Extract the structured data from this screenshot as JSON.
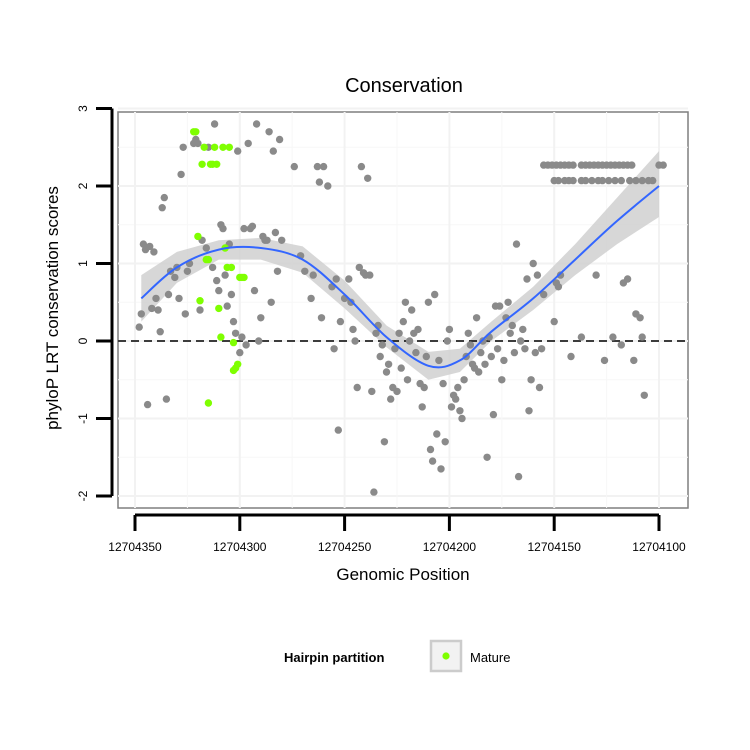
{
  "chart_data": {
    "type": "scatter",
    "title": "Conservation",
    "xlabel": "Genomic Position",
    "ylabel": "phyloP LRT conservation scores",
    "x_reversed": true,
    "xlim": [
      12704100,
      12704350
    ],
    "ylim": [
      -2,
      3
    ],
    "x_ticks": [
      12704350,
      12704300,
      12704250,
      12704200,
      12704150,
      12704100
    ],
    "x_tick_labels": [
      "12704350",
      "12704300",
      "12704250",
      "12704200",
      "12704150",
      "12704100"
    ],
    "y_ticks": [
      -2,
      -1,
      0,
      1,
      2,
      3
    ],
    "y_tick_labels": [
      "-2",
      "-1",
      "0",
      "1",
      "2",
      "3"
    ],
    "reference_line": {
      "y": 0,
      "style": "dashed"
    },
    "legend": {
      "title": "Hairpin partition",
      "position": "bottom",
      "entries": [
        {
          "label": "Mature",
          "color": "#7fff00"
        }
      ]
    },
    "colors": {
      "other": "#8a8a8a",
      "mature": "#7fff00",
      "smooth": "#3366ff",
      "band": "#d0d0d0"
    },
    "series": [
      {
        "name": "Other",
        "points": [
          [
            12704348,
            0.18
          ],
          [
            12704347,
            0.35
          ],
          [
            12704346,
            1.25
          ],
          [
            12704345,
            1.18
          ],
          [
            12704344,
            -0.82
          ],
          [
            12704343,
            1.22
          ],
          [
            12704342,
            0.42
          ],
          [
            12704341,
            1.15
          ],
          [
            12704340,
            0.55
          ],
          [
            12704339,
            0.4
          ],
          [
            12704338,
            0.12
          ],
          [
            12704337,
            1.72
          ],
          [
            12704336,
            1.85
          ],
          [
            12704335,
            -0.75
          ],
          [
            12704334,
            0.6
          ],
          [
            12704333,
            0.9
          ],
          [
            12704331,
            0.82
          ],
          [
            12704330,
            0.95
          ],
          [
            12704329,
            0.55
          ],
          [
            12704328,
            2.15
          ],
          [
            12704327,
            2.5
          ],
          [
            12704326,
            0.35
          ],
          [
            12704325,
            0.9
          ],
          [
            12704324,
            1.0
          ],
          [
            12704322,
            2.55
          ],
          [
            12704321,
            2.6
          ],
          [
            12704320,
            2.55
          ],
          [
            12704319,
            0.4
          ],
          [
            12704318,
            1.3
          ],
          [
            12704316,
            1.2
          ],
          [
            12704315,
            2.5
          ],
          [
            12704313,
            0.95
          ],
          [
            12704312,
            2.8
          ],
          [
            12704311,
            0.78
          ],
          [
            12704310,
            0.65
          ],
          [
            12704309,
            1.5
          ],
          [
            12704308,
            1.45
          ],
          [
            12704307,
            0.85
          ],
          [
            12704306,
            0.45
          ],
          [
            12704305,
            1.25
          ],
          [
            12704304,
            0.6
          ],
          [
            12704303,
            0.25
          ],
          [
            12704302,
            0.1
          ],
          [
            12704301,
            2.45
          ],
          [
            12704300,
            -0.15
          ],
          [
            12704299,
            0.05
          ],
          [
            12704298,
            1.45
          ],
          [
            12704297,
            -0.05
          ],
          [
            12704296,
            2.55
          ],
          [
            12704295,
            1.45
          ],
          [
            12704294,
            1.48
          ],
          [
            12704293,
            0.65
          ],
          [
            12704292,
            2.8
          ],
          [
            12704291,
            0.0
          ],
          [
            12704290,
            0.3
          ],
          [
            12704289,
            1.35
          ],
          [
            12704288,
            1.3
          ],
          [
            12704287,
            1.3
          ],
          [
            12704286,
            2.7
          ],
          [
            12704285,
            0.5
          ],
          [
            12704284,
            2.45
          ],
          [
            12704283,
            1.4
          ],
          [
            12704282,
            0.9
          ],
          [
            12704281,
            2.6
          ],
          [
            12704280,
            1.3
          ],
          [
            12704274,
            2.25
          ],
          [
            12704271,
            1.1
          ],
          [
            12704269,
            0.9
          ],
          [
            12704266,
            0.55
          ],
          [
            12704265,
            0.85
          ],
          [
            12704263,
            2.25
          ],
          [
            12704262,
            2.05
          ],
          [
            12704261,
            0.3
          ],
          [
            12704260,
            2.25
          ],
          [
            12704258,
            2.0
          ],
          [
            12704256,
            0.7
          ],
          [
            12704255,
            -0.1
          ],
          [
            12704254,
            0.8
          ],
          [
            12704253,
            -1.15
          ],
          [
            12704252,
            0.25
          ],
          [
            12704250,
            0.55
          ],
          [
            12704248,
            0.8
          ],
          [
            12704247,
            0.5
          ],
          [
            12704246,
            0.15
          ],
          [
            12704245,
            0.0
          ],
          [
            12704244,
            -0.6
          ],
          [
            12704243,
            0.95
          ],
          [
            12704242,
            2.25
          ],
          [
            12704241,
            0.88
          ],
          [
            12704240,
            0.85
          ],
          [
            12704239,
            2.1
          ],
          [
            12704238,
            0.85
          ],
          [
            12704237,
            -0.65
          ],
          [
            12704236,
            -1.95
          ],
          [
            12704235,
            0.1
          ],
          [
            12704234,
            0.2
          ],
          [
            12704233,
            -0.2
          ],
          [
            12704232,
            -0.05
          ],
          [
            12704231,
            -1.3
          ],
          [
            12704230,
            -0.4
          ],
          [
            12704229,
            -0.3
          ],
          [
            12704228,
            -0.75
          ],
          [
            12704227,
            -0.6
          ],
          [
            12704226,
            -0.1
          ],
          [
            12704225,
            -0.65
          ],
          [
            12704224,
            0.1
          ],
          [
            12704223,
            -0.35
          ],
          [
            12704222,
            0.25
          ],
          [
            12704221,
            0.5
          ],
          [
            12704220,
            -0.5
          ],
          [
            12704219,
            0.0
          ],
          [
            12704218,
            0.4
          ],
          [
            12704217,
            0.1
          ],
          [
            12704216,
            -0.15
          ],
          [
            12704215,
            0.15
          ],
          [
            12704214,
            -0.55
          ],
          [
            12704213,
            -0.85
          ],
          [
            12704212,
            -0.6
          ],
          [
            12704211,
            -0.2
          ],
          [
            12704210,
            0.5
          ],
          [
            12704209,
            -1.4
          ],
          [
            12704208,
            -1.55
          ],
          [
            12704207,
            0.6
          ],
          [
            12704206,
            -1.2
          ],
          [
            12704205,
            -0.25
          ],
          [
            12704204,
            -1.65
          ],
          [
            12704203,
            -0.55
          ],
          [
            12704202,
            -1.3
          ],
          [
            12704201,
            0.0
          ],
          [
            12704200,
            0.15
          ],
          [
            12704199,
            -0.85
          ],
          [
            12704198,
            -0.7
          ],
          [
            12704197,
            -0.75
          ],
          [
            12704196,
            -0.6
          ],
          [
            12704195,
            -0.9
          ],
          [
            12704194,
            -1.0
          ],
          [
            12704193,
            -0.5
          ],
          [
            12704192,
            -0.2
          ],
          [
            12704191,
            0.1
          ],
          [
            12704190,
            -0.05
          ],
          [
            12704189,
            -0.3
          ],
          [
            12704188,
            -0.35
          ],
          [
            12704187,
            0.3
          ],
          [
            12704186,
            -0.4
          ],
          [
            12704185,
            -0.15
          ],
          [
            12704184,
            0.0
          ],
          [
            12704183,
            -0.3
          ],
          [
            12704182,
            -1.5
          ],
          [
            12704181,
            0.05
          ],
          [
            12704180,
            -0.2
          ],
          [
            12704179,
            -0.95
          ],
          [
            12704178,
            0.45
          ],
          [
            12704177,
            -0.1
          ],
          [
            12704176,
            0.45
          ],
          [
            12704175,
            -0.5
          ],
          [
            12704174,
            -0.25
          ],
          [
            12704173,
            0.3
          ],
          [
            12704172,
            0.5
          ],
          [
            12704171,
            0.1
          ],
          [
            12704170,
            0.2
          ],
          [
            12704169,
            -0.15
          ],
          [
            12704168,
            1.25
          ],
          [
            12704167,
            -1.75
          ],
          [
            12704166,
            0.0
          ],
          [
            12704165,
            0.15
          ],
          [
            12704164,
            -0.1
          ],
          [
            12704163,
            0.8
          ],
          [
            12704162,
            -0.9
          ],
          [
            12704161,
            -0.5
          ],
          [
            12704160,
            1.0
          ],
          [
            12704159,
            -0.15
          ],
          [
            12704158,
            0.85
          ],
          [
            12704157,
            -0.6
          ],
          [
            12704156,
            -0.1
          ],
          [
            12704155,
            0.6
          ],
          [
            12704150,
            0.25
          ],
          [
            12704149,
            0.75
          ],
          [
            12704148,
            0.7
          ],
          [
            12704147,
            0.85
          ],
          [
            12704142,
            -0.2
          ],
          [
            12704137,
            0.05
          ],
          [
            12704130,
            0.85
          ],
          [
            12704126,
            -0.25
          ],
          [
            12704122,
            0.05
          ],
          [
            12704118,
            -0.05
          ],
          [
            12704117,
            0.75
          ],
          [
            12704115,
            0.8
          ],
          [
            12704112,
            -0.25
          ],
          [
            12704111,
            0.35
          ],
          [
            12704109,
            0.3
          ],
          [
            12704108,
            0.05
          ],
          [
            12704107,
            -0.7
          ],
          [
            12704155,
            2.27
          ],
          [
            12704153,
            2.27
          ],
          [
            12704151,
            2.27
          ],
          [
            12704149,
            2.27
          ],
          [
            12704147,
            2.27
          ],
          [
            12704145,
            2.27
          ],
          [
            12704143,
            2.27
          ],
          [
            12704141,
            2.27
          ],
          [
            12704137,
            2.27
          ],
          [
            12704135,
            2.27
          ],
          [
            12704133,
            2.27
          ],
          [
            12704131,
            2.27
          ],
          [
            12704129,
            2.27
          ],
          [
            12704127,
            2.27
          ],
          [
            12704125,
            2.27
          ],
          [
            12704123,
            2.27
          ],
          [
            12704121,
            2.27
          ],
          [
            12704119,
            2.27
          ],
          [
            12704117,
            2.27
          ],
          [
            12704115,
            2.27
          ],
          [
            12704113,
            2.27
          ],
          [
            12704100,
            2.27
          ],
          [
            12704098,
            2.27
          ],
          [
            12704150,
            2.07
          ],
          [
            12704148,
            2.07
          ],
          [
            12704145,
            2.07
          ],
          [
            12704143,
            2.07
          ],
          [
            12704141,
            2.07
          ],
          [
            12704137,
            2.07
          ],
          [
            12704135,
            2.07
          ],
          [
            12704132,
            2.07
          ],
          [
            12704129,
            2.07
          ],
          [
            12704127,
            2.07
          ],
          [
            12704124,
            2.07
          ],
          [
            12704121,
            2.07
          ],
          [
            12704118,
            2.07
          ],
          [
            12704114,
            2.07
          ],
          [
            12704111,
            2.07
          ],
          [
            12704108,
            2.07
          ],
          [
            12704105,
            2.07
          ],
          [
            12704103,
            2.07
          ]
        ]
      },
      {
        "name": "Mature",
        "points": [
          [
            12704322,
            2.7
          ],
          [
            12704321,
            2.7
          ],
          [
            12704320,
            1.35
          ],
          [
            12704319,
            0.52
          ],
          [
            12704318,
            2.28
          ],
          [
            12704317,
            2.5
          ],
          [
            12704316,
            1.05
          ],
          [
            12704315,
            1.05
          ],
          [
            12704314,
            2.28
          ],
          [
            12704313,
            2.28
          ],
          [
            12704312,
            2.5
          ],
          [
            12704311,
            2.28
          ],
          [
            12704310,
            0.42
          ],
          [
            12704309,
            0.05
          ],
          [
            12704308,
            2.5
          ],
          [
            12704307,
            1.2
          ],
          [
            12704306,
            0.95
          ],
          [
            12704305,
            2.5
          ],
          [
            12704304,
            0.95
          ],
          [
            12704303,
            -0.02
          ],
          [
            12704302,
            -0.35
          ],
          [
            12704301,
            -0.3
          ],
          [
            12704300,
            0.82
          ],
          [
            12704299,
            0.82
          ],
          [
            12704298,
            0.82
          ],
          [
            12704315,
            -0.8
          ],
          [
            12704303,
            -0.38
          ]
        ]
      }
    ],
    "smooth_line": {
      "x": [
        12704347,
        12704330,
        12704310,
        12704290,
        12704270,
        12704250,
        12704230,
        12704210,
        12704195,
        12704180,
        12704160,
        12704140,
        12704120,
        12704100
      ],
      "y": [
        0.55,
        0.95,
        1.18,
        1.2,
        1.05,
        0.6,
        0.05,
        -0.32,
        -0.25,
        0.12,
        0.55,
        1.05,
        1.55,
        2.0
      ],
      "ci_low": [
        0.25,
        0.75,
        1.05,
        1.05,
        0.88,
        0.42,
        -0.08,
        -0.5,
        -0.4,
        0.0,
        0.4,
        0.85,
        1.25,
        1.6
      ],
      "ci_high": [
        0.85,
        1.15,
        1.3,
        1.33,
        1.22,
        0.78,
        0.2,
        -0.14,
        -0.1,
        0.25,
        0.7,
        1.25,
        1.85,
        2.45
      ]
    }
  }
}
